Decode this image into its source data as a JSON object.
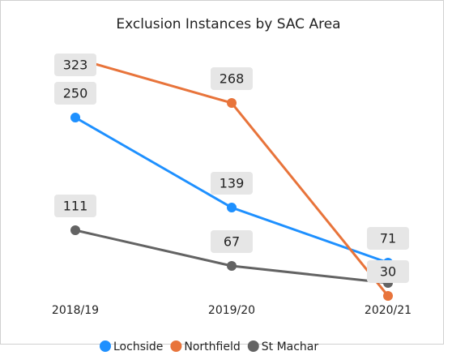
{
  "chart_data": {
    "type": "line",
    "title": "Exclusion Instances by SAC Area",
    "categories": [
      "2018/19",
      "2019/20",
      "2020/21"
    ],
    "series": [
      {
        "name": "Lochside",
        "color": "#1e90ff",
        "values": [
          250,
          139,
          71
        ]
      },
      {
        "name": "Northfield",
        "color": "#e8743b",
        "values": [
          323,
          268,
          30
        ]
      },
      {
        "name": "St Machar",
        "color": "#636363",
        "values": [
          111,
          67,
          46
        ],
        "value_labels": [
          "111",
          "67",
          null
        ]
      }
    ],
    "ylim": [
      0,
      350
    ],
    "legend": "bottom"
  }
}
